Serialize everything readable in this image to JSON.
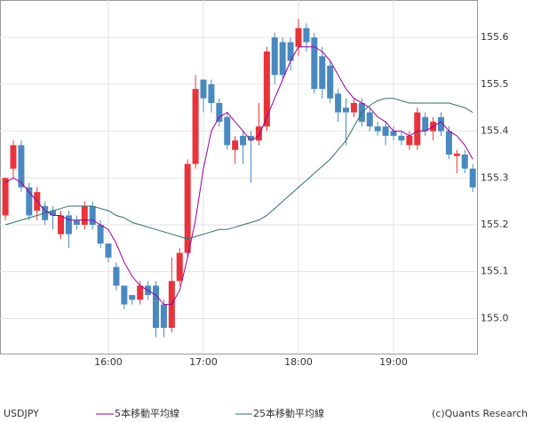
{
  "chart_data": {
    "type": "candlestick",
    "symbol": "USDJPY",
    "credit": "(c)Quants Research",
    "categories": [
      null,
      null,
      null,
      null,
      null,
      null,
      null,
      null,
      null,
      null,
      null,
      null,
      null,
      "16:00",
      null,
      null,
      null,
      null,
      null,
      null,
      null,
      null,
      null,
      null,
      null,
      "17:00",
      null,
      null,
      null,
      null,
      null,
      null,
      null,
      null,
      null,
      null,
      null,
      "18:00",
      null,
      null,
      null,
      null,
      null,
      null,
      null,
      null,
      null,
      null,
      null,
      "19:00",
      null,
      null,
      null,
      null,
      null,
      null,
      null,
      null,
      null,
      null
    ],
    "up_color": "#e8333a",
    "down_color": "#4a88c0",
    "open": [
      155.22,
      155.32,
      155.37,
      155.28,
      155.23,
      155.24,
      155.23,
      155.18,
      155.22,
      155.21,
      155.2,
      155.24,
      155.2,
      155.16,
      155.11,
      155.07,
      155.05,
      155.04,
      155.07,
      155.07,
      155.03,
      154.98,
      155.08,
      155.14,
      155.33,
      155.51,
      155.5,
      155.46,
      155.43,
      155.36,
      155.39,
      155.39,
      155.38,
      155.41,
      155.6,
      155.59,
      155.59,
      155.58,
      155.62,
      155.6,
      155.56,
      155.54,
      155.48,
      155.45,
      155.44,
      155.46,
      155.44,
      155.41,
      155.41,
      155.4,
      155.39,
      155.37,
      155.37,
      155.43,
      155.4,
      155.43,
      155.4,
      155.347,
      155.35,
      155.32
    ],
    "high": [
      155.3,
      155.38,
      155.38,
      155.29,
      155.28,
      155.25,
      155.24,
      155.23,
      155.23,
      155.22,
      155.25,
      155.25,
      155.21,
      155.16,
      155.12,
      155.07,
      155.05,
      155.08,
      155.08,
      155.08,
      155.04,
      155.13,
      155.15,
      155.34,
      155.52,
      155.51,
      155.51,
      155.47,
      155.44,
      155.39,
      155.4,
      155.4,
      155.46,
      155.58,
      155.61,
      155.6,
      155.6,
      155.64,
      155.63,
      155.61,
      155.58,
      155.55,
      155.49,
      155.47,
      155.47,
      155.47,
      155.45,
      155.42,
      155.42,
      155.41,
      155.4,
      155.4,
      155.45,
      155.44,
      155.43,
      155.44,
      155.41,
      155.36,
      155.36,
      155.33
    ],
    "low": [
      155.21,
      155.3,
      155.27,
      155.21,
      155.21,
      155.2,
      155.19,
      155.17,
      155.15,
      155.19,
      155.19,
      155.19,
      155.15,
      155.12,
      155.06,
      155.02,
      155.03,
      155.03,
      155.04,
      154.96,
      154.96,
      154.97,
      155.07,
      155.13,
      155.32,
      155.44,
      155.44,
      155.41,
      155.36,
      155.33,
      155.33,
      155.29,
      155.37,
      155.4,
      155.5,
      155.51,
      155.53,
      155.56,
      155.57,
      155.48,
      155.47,
      155.46,
      155.42,
      155.37,
      155.43,
      155.41,
      155.4,
      155.39,
      155.37,
      155.38,
      155.37,
      155.36,
      155.36,
      155.39,
      155.38,
      155.39,
      155.34,
      155.31,
      155.31,
      155.27
    ],
    "close": [
      155.3,
      155.37,
      155.28,
      155.22,
      155.27,
      155.21,
      155.22,
      155.22,
      155.18,
      155.2,
      155.24,
      155.2,
      155.16,
      155.13,
      155.07,
      155.03,
      155.04,
      155.07,
      155.05,
      154.98,
      154.98,
      155.08,
      155.14,
      155.33,
      155.49,
      155.47,
      155.46,
      155.42,
      155.37,
      155.38,
      155.37,
      155.38,
      155.41,
      155.57,
      155.52,
      155.52,
      155.55,
      155.62,
      155.59,
      155.49,
      155.49,
      155.47,
      155.44,
      155.44,
      155.46,
      155.42,
      155.41,
      155.4,
      155.39,
      155.39,
      155.38,
      155.39,
      155.44,
      155.4,
      155.42,
      155.4,
      155.35,
      155.352,
      155.32,
      155.28
    ],
    "lines": [
      {
        "name": "5本移動平均線",
        "color": "#990099",
        "values": [
          155.29,
          155.3,
          155.29,
          155.27,
          155.25,
          155.23,
          155.22,
          155.22,
          155.21,
          155.21,
          155.21,
          155.21,
          155.2,
          155.19,
          155.16,
          155.12,
          155.09,
          155.07,
          155.06,
          155.05,
          155.03,
          155.03,
          155.06,
          155.13,
          155.21,
          155.32,
          155.4,
          155.43,
          155.44,
          155.42,
          155.4,
          155.38,
          155.39,
          155.43,
          155.47,
          155.51,
          155.55,
          155.58,
          155.58,
          155.58,
          155.57,
          155.55,
          155.52,
          155.49,
          155.47,
          155.46,
          155.45,
          155.43,
          155.42,
          155.4,
          155.4,
          155.39,
          155.4,
          155.4,
          155.41,
          155.42,
          155.4,
          155.39,
          155.37,
          155.34
        ]
      },
      {
        "name": "25本移動平均線",
        "color": "#2e6f6f",
        "values": [
          155.2,
          155.205,
          155.21,
          155.215,
          155.22,
          155.225,
          155.23,
          155.235,
          155.24,
          155.24,
          155.24,
          155.24,
          155.235,
          155.23,
          155.22,
          155.215,
          155.205,
          155.2,
          155.195,
          155.19,
          155.185,
          155.18,
          155.175,
          155.17,
          155.175,
          155.18,
          155.185,
          155.19,
          155.19,
          155.195,
          155.2,
          155.205,
          155.21,
          155.22,
          155.235,
          155.25,
          155.265,
          155.28,
          155.295,
          155.31,
          155.325,
          155.34,
          155.36,
          155.38,
          155.41,
          155.44,
          155.455,
          155.465,
          155.47,
          155.47,
          155.465,
          155.46,
          155.46,
          155.46,
          155.46,
          155.46,
          155.46,
          155.455,
          155.45,
          155.44
        ]
      }
    ],
    "ylim": [
      154.925,
      155.68
    ],
    "yticks": [
      {
        "value": 155.0,
        "label": "155.0"
      },
      155.1,
      155.2,
      155.3,
      155.4,
      155.5,
      155.6
    ],
    "grid": true
  }
}
